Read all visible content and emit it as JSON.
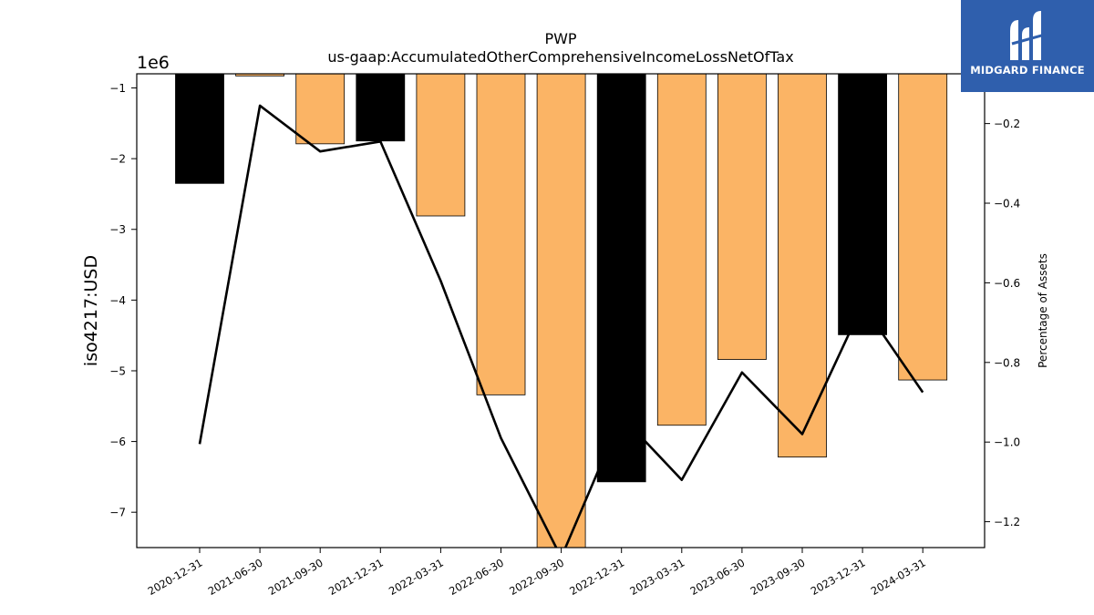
{
  "chart_data": {
    "type": "bar",
    "title": "PWP",
    "subtitle": "us-gaap:AccumulatedOtherComprehensiveIncomeLossNetOfTax",
    "ylabel": "iso4217:USD",
    "y_offset_label": "1e6",
    "y2label": "Percentage of Assets",
    "categories": [
      "2020-12-31",
      "2021-06-30",
      "2021-09-30",
      "2021-12-31",
      "2022-03-31",
      "2022-06-30",
      "2022-09-30",
      "2022-12-31",
      "2023-03-31",
      "2023-06-30",
      "2023-09-30",
      "2023-12-31",
      "2024-03-31"
    ],
    "series": [
      {
        "values": [
          -2.35,
          -0.83,
          -1.79,
          -1.75,
          -2.81,
          -5.34,
          -7.54,
          -6.57,
          -5.77,
          -4.84,
          -6.22,
          -4.49,
          -5.13
        ],
        "axis": "left",
        "colors": [
          "#000000",
          "#fbb465",
          "#fbb465",
          "#000000",
          "#fbb465",
          "#fbb465",
          "#fbb465",
          "#000000",
          "#fbb465",
          "#fbb465",
          "#fbb465",
          "#000000",
          "#fbb465"
        ]
      },
      {
        "type": "line",
        "axis": "right",
        "color": "#000000",
        "values": [
          -1.005,
          -0.155,
          -0.27,
          -0.245,
          -0.595,
          -0.99,
          -1.29,
          -0.935,
          -1.095,
          -0.825,
          -0.98,
          -0.655,
          -0.875
        ]
      }
    ],
    "ylim": [
      -7.5,
      -0.8
    ],
    "y2lim": [
      -1.265,
      -0.075
    ],
    "yticks": [
      -1,
      -2,
      -3,
      -4,
      -5,
      -6,
      -7
    ],
    "y2ticks": [
      -0.2,
      -0.4,
      -0.6,
      -0.8,
      -1.0,
      -1.2
    ],
    "grid": false
  },
  "logo": {
    "text": "MIDGARD FINANCE",
    "bg_color": "#2f5fad"
  }
}
